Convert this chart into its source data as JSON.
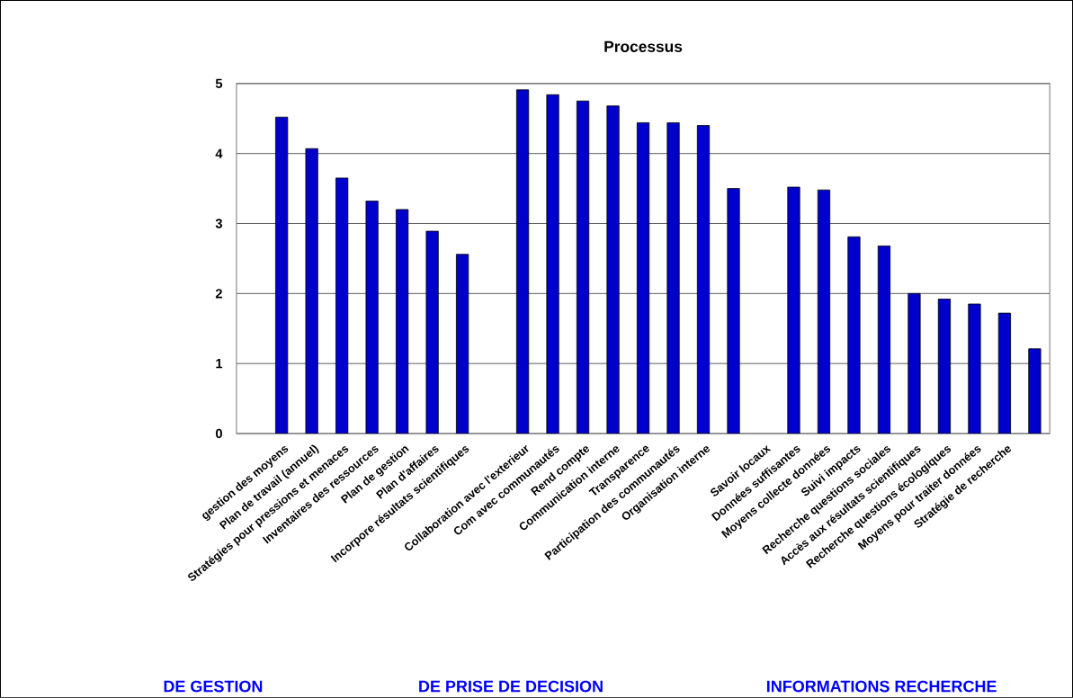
{
  "chart_data": {
    "type": "bar",
    "title": "Processus",
    "categories": [
      null,
      "gestion des moyens",
      "Plan de travail (annuel)",
      "Stratégies pour pressions et menaces",
      "Inventaires des ressources",
      "Plan de gestion",
      "Plan d'affaires",
      "Incorpore résultats scientifiques",
      null,
      "Collaboration avec l'exterieur",
      "Com avec communautés",
      "Rend compte",
      "Communication interne",
      "Transparence",
      "Participation des communautés",
      "Organisation interne",
      null,
      "Savoir locaux",
      "Données suffisantes",
      "Moyens collecte données",
      "Suivi impacts",
      "Recherche questions sociales",
      "Accès aux résultats scientifiques",
      "Recherche questions écologiques",
      "Moyens pour traiter données",
      "Stratégie de recherche",
      null
    ],
    "values": [
      null,
      4.52,
      4.07,
      3.65,
      3.32,
      3.2,
      2.89,
      2.56,
      null,
      4.91,
      4.84,
      4.75,
      4.68,
      4.44,
      4.44,
      4.4,
      3.5,
      null,
      3.52,
      3.48,
      2.81,
      2.68,
      2.0,
      1.92,
      1.85,
      1.72,
      1.21
    ],
    "color": "#0000cc",
    "ylim": [
      0,
      5
    ],
    "yticks": [
      0,
      1,
      2,
      3,
      4,
      5
    ],
    "grid": "y",
    "annotations": [
      "DE GESTION",
      "DE PRISE DE DECISION",
      "INFORMATIONS RECHERCHE"
    ]
  }
}
